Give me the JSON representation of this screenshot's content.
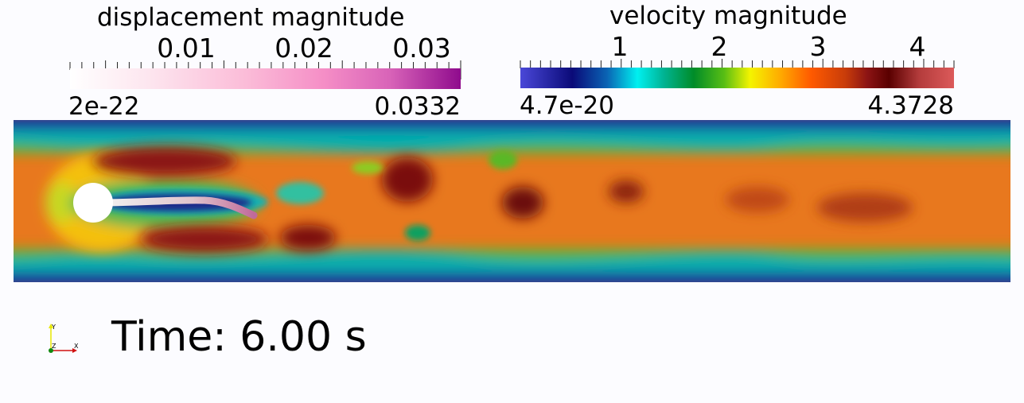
{
  "displacement_bar": {
    "title": "displacement magnitude",
    "tick_labels": [
      "0.01",
      "0.02",
      "0.03"
    ],
    "range_min": "2e-22",
    "range_max": "0.0332",
    "colors": [
      "#ffffff",
      "#fbbcd8",
      "#f58ec6",
      "#8f0b8d"
    ]
  },
  "velocity_bar": {
    "title": "velocity magnitude",
    "tick_labels": [
      "1",
      "2",
      "3",
      "4"
    ],
    "range_min": "4.7e-20",
    "range_max": "4.3728",
    "colors": [
      "#4a48d8",
      "#0a0a78",
      "#00f0f0",
      "#008c28",
      "#f4f400",
      "#ff5a00",
      "#5a0000",
      "#dc5a5a"
    ]
  },
  "axes_widget": {
    "y_label": "Y",
    "z_label": "Z",
    "x_label": "X",
    "colors": {
      "y": "#e8e800",
      "x": "#d01010",
      "z": "#108810"
    }
  },
  "time_annotation": "Time: 6.00 s"
}
